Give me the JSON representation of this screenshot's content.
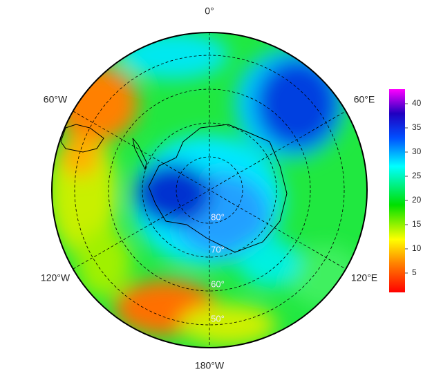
{
  "map": {
    "longitude_labels": [
      "0°",
      "60°E",
      "120°E",
      "180°W",
      "120°W",
      "60°W"
    ],
    "latitude_labels": [
      "80°",
      "70°",
      "60°",
      "50°"
    ],
    "colorbar": {
      "range": [
        1,
        43
      ],
      "ticks": [
        5,
        10,
        15,
        20,
        25,
        30,
        35,
        40
      ]
    }
  }
}
